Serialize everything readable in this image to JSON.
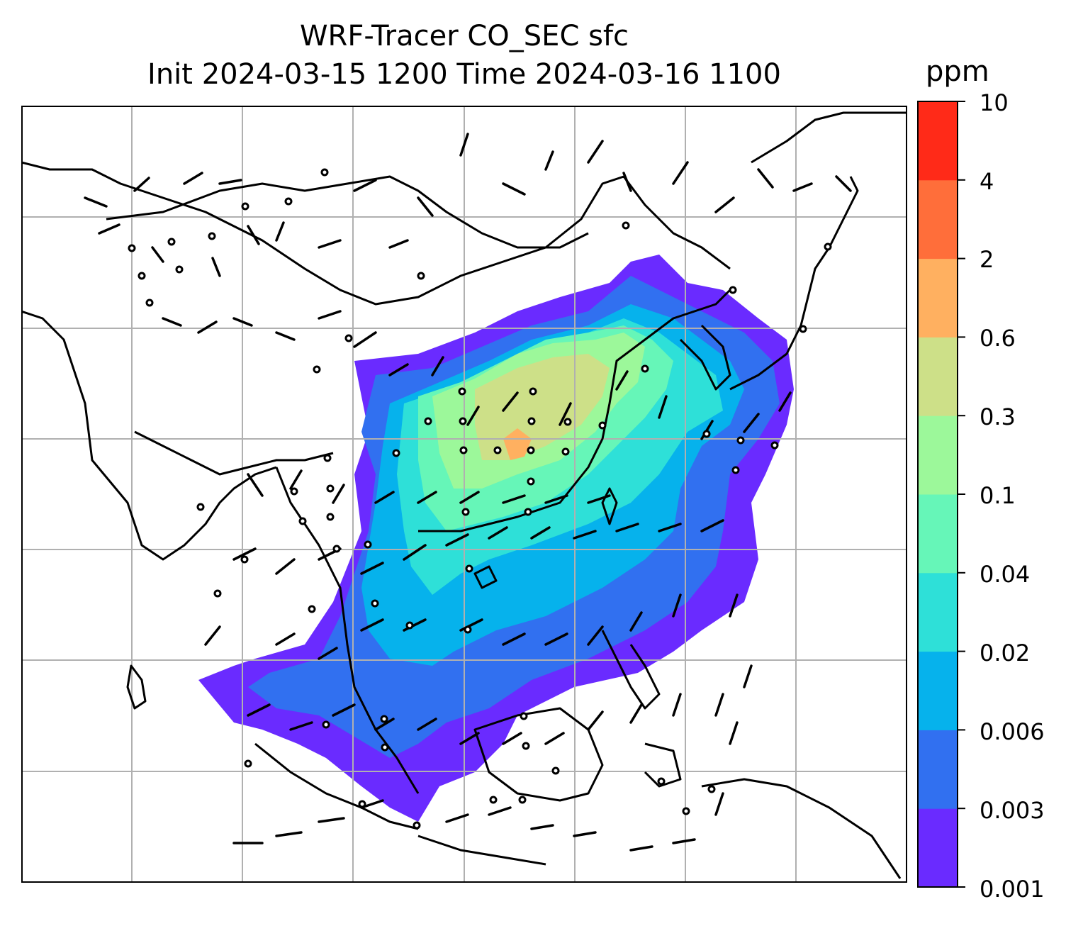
{
  "title": {
    "line1": "WRF-Tracer CO_SEC sfc",
    "line2": "Init 2024-03-15 1200 Time 2024-03-16 1100"
  },
  "colorbar": {
    "unit": "ppm",
    "ticks": [
      "10",
      "4",
      "2",
      "0.6",
      "0.3",
      "0.1",
      "0.04",
      "0.02",
      "0.006",
      "0.003",
      "0.001"
    ],
    "colors": [
      "#6a2bff",
      "#3170f0",
      "#06b2ec",
      "#2ee0d8",
      "#66f6b8",
      "#9cf89a",
      "#cde088",
      "#ffb060",
      "#ff6e3a",
      "#ff2a18"
    ]
  },
  "map": {
    "gridlines": "on",
    "features": [
      "coastlines",
      "country borders",
      "tracer concentration filled contours",
      "wind barbs",
      "calm-wind circles"
    ]
  }
}
